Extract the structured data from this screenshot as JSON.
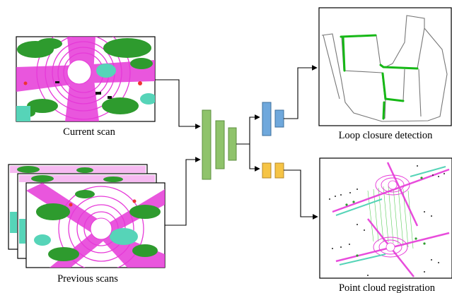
{
  "inputs": {
    "current_scan_label": "Current scan",
    "previous_scans_label": "Previous scans"
  },
  "outputs": {
    "loop_closure_label": "Loop closure detection",
    "registration_label": "Point cloud registration"
  },
  "colors": {
    "encoder": "#8fc36b",
    "loop_head": "#6fa8dc",
    "registration_head": "#f6c445",
    "road": "#e639d8",
    "vegetation": "#2e9b2e",
    "sidewalk": "#56d4b8",
    "trajectory": "#777777",
    "loop": "#16b816"
  }
}
